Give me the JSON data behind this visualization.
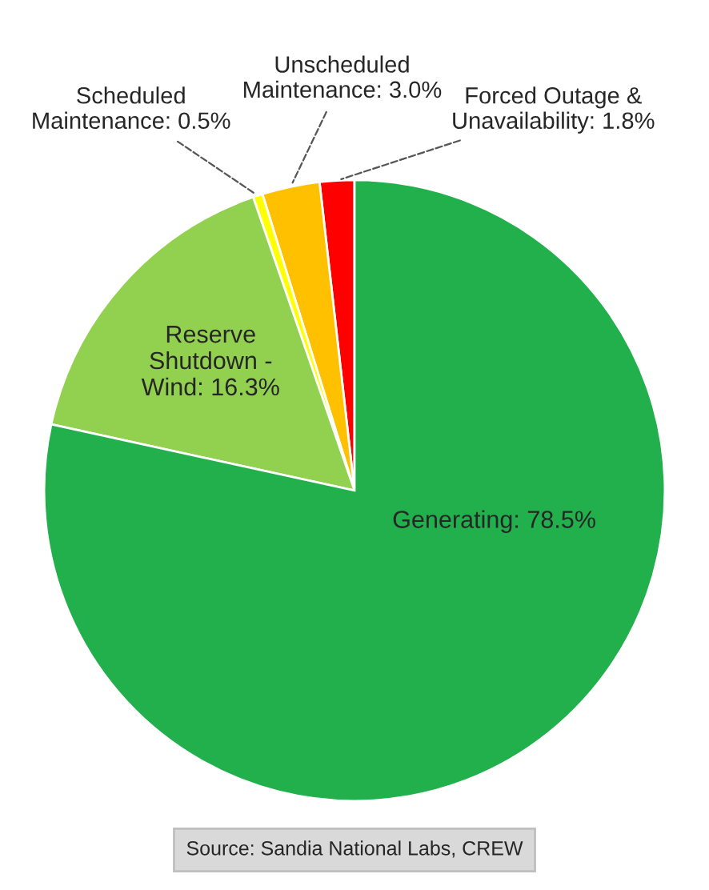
{
  "chart_data": {
    "type": "pie",
    "categories": [
      "Forced Outage &\nUnavailability",
      "Unscheduled\nMaintenance",
      "Scheduled\nMaintenance",
      "Reserve\nShutdown -\nWind",
      "Generating"
    ],
    "values": [
      1.8,
      3.0,
      0.5,
      16.3,
      78.5
    ],
    "value_labels": [
      "1.8%",
      "3.0%",
      "0.5%",
      "16.3%",
      "78.5%"
    ],
    "colors": [
      "#ff0000",
      "#ffc000",
      "#ffff00",
      "#92d050",
      "#21b04b"
    ],
    "annotations": [
      "Source: Sandia National Labs, CREW"
    ]
  }
}
